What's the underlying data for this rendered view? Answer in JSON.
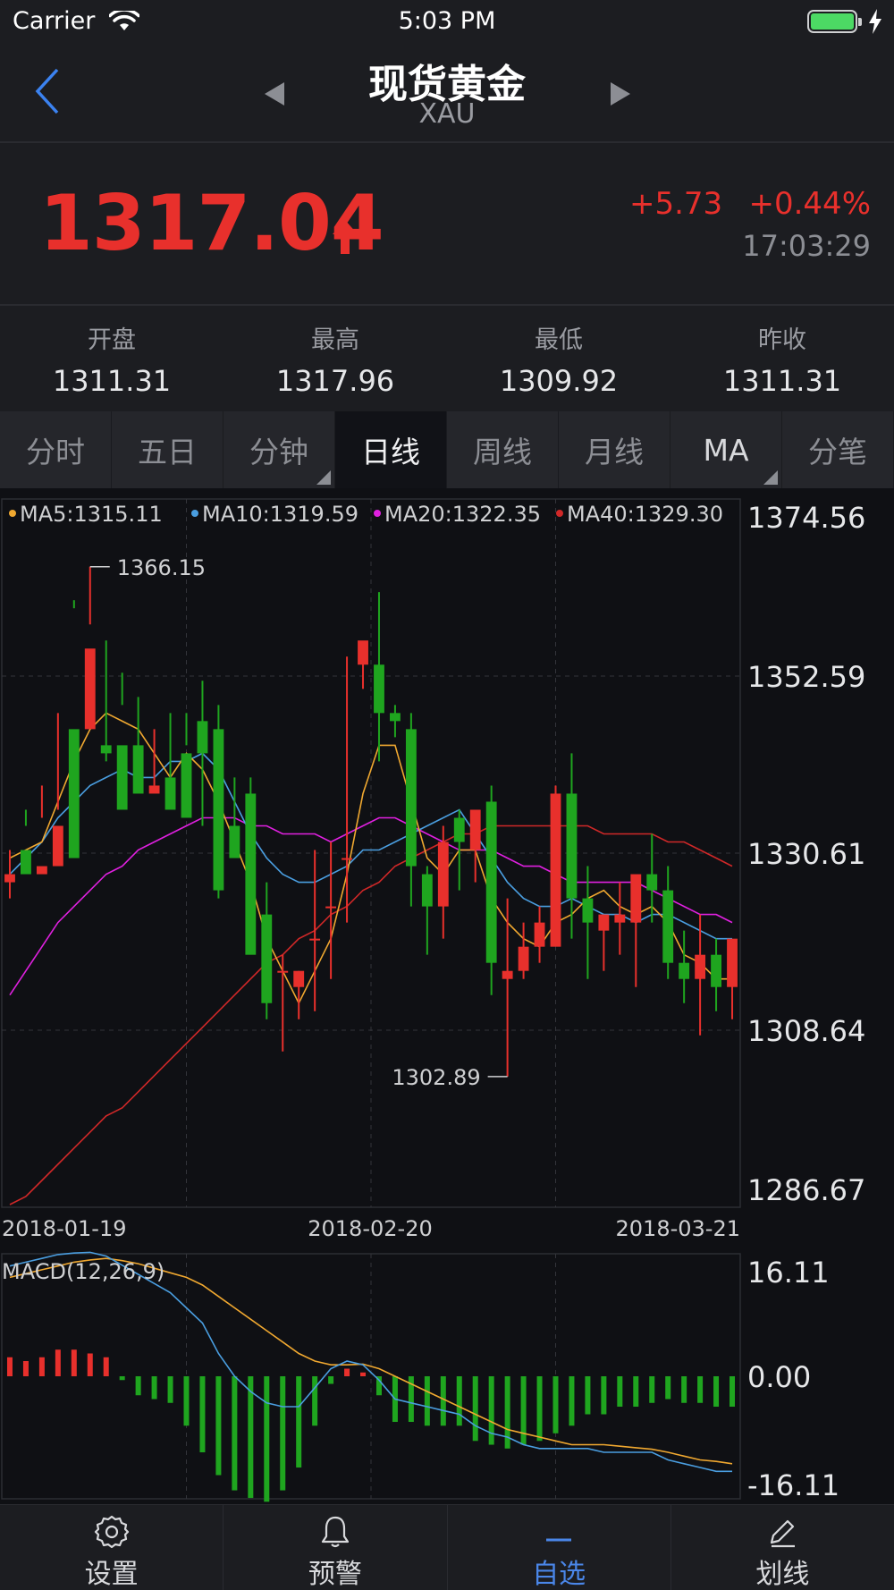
{
  "status_bar": {
    "carrier": "Carrier",
    "time": "5:03 PM"
  },
  "nav": {
    "title": "现货黄金",
    "subtitle": "XAU"
  },
  "quote": {
    "price": "1317.04",
    "change": "+5.73",
    "change_pct": "+0.44%",
    "time": "17:03:29"
  },
  "stats": [
    {
      "label": "开盘",
      "value": "1311.31"
    },
    {
      "label": "最高",
      "value": "1317.96"
    },
    {
      "label": "最低",
      "value": "1309.92"
    },
    {
      "label": "昨收",
      "value": "1311.31"
    }
  ],
  "tabs": [
    {
      "label": "分时",
      "active": false,
      "corner": false
    },
    {
      "label": "五日",
      "active": false,
      "corner": false
    },
    {
      "label": "分钟",
      "active": false,
      "corner": true
    },
    {
      "label": "日线",
      "active": true,
      "corner": false
    },
    {
      "label": "周线",
      "active": false,
      "corner": false
    },
    {
      "label": "月线",
      "active": false,
      "corner": false
    },
    {
      "label": "MA",
      "active": false,
      "corner": true
    },
    {
      "label": "分笔",
      "active": false,
      "corner": false
    }
  ],
  "bottom_tabs": [
    {
      "label": "设置",
      "icon": "gear-icon",
      "active": false
    },
    {
      "label": "预警",
      "icon": "bell-icon",
      "active": false
    },
    {
      "label": "自选",
      "icon": "minus-icon",
      "active": true
    },
    {
      "label": "划线",
      "icon": "pencil-icon",
      "active": false
    }
  ],
  "colors": {
    "up": "#e8302c",
    "down": "#1fa51f",
    "ma5": "#f0a830",
    "ma10": "#4a9ee0",
    "ma20": "#e020e0",
    "ma40": "#d02828",
    "dif": "#4a9ee0",
    "dea": "#f0a830",
    "accent": "#4a86e8"
  },
  "chart_data": [
    {
      "type": "candlestick",
      "legend": [
        {
          "label": "MA5:1315.11",
          "color": "#f0a830"
        },
        {
          "label": "MA10:1319.59",
          "color": "#4a9ee0"
        },
        {
          "label": "MA20:1322.35",
          "color": "#e020e0"
        },
        {
          "label": "MA40:1329.30",
          "color": "#d02828"
        }
      ],
      "ylim": [
        1286.67,
        1374.56
      ],
      "y_ticks": [
        "1374.56",
        "1352.59",
        "1330.61",
        "1308.64",
        "1286.67"
      ],
      "x_ticks": [
        "2018-01-19",
        "2018-02-20",
        "2018-03-21"
      ],
      "max_label": "1366.15",
      "min_label": "1302.89",
      "candles": [
        [
          1327,
          1331,
          1328,
          1325
        ],
        [
          1331,
          1334,
          1328,
          1336
        ],
        [
          1328,
          1339,
          1329,
          1335
        ],
        [
          1329,
          1348,
          1334,
          1336
        ],
        [
          1346,
          1361,
          1330,
          1362
        ],
        [
          1346,
          1366.15,
          1356,
          1359
        ],
        [
          1344,
          1357,
          1343,
          1342
        ],
        [
          1344,
          1353,
          1336,
          1349
        ],
        [
          1344,
          1350,
          1338,
          1342
        ],
        [
          1338,
          1346,
          1339,
          1339
        ],
        [
          1340,
          1348,
          1336,
          1337
        ],
        [
          1343,
          1348,
          1335,
          1344
        ],
        [
          1347,
          1352,
          1343,
          1334
        ],
        [
          1346,
          1349,
          1326,
          1325
        ],
        [
          1334,
          1340,
          1330,
          1330
        ],
        [
          1338,
          1340,
          1318,
          1322
        ],
        [
          1323,
          1327,
          1312,
          1310
        ],
        [
          1316,
          1318,
          1316,
          1306
        ],
        [
          1314,
          1316,
          1316,
          1310
        ],
        [
          1320,
          1331,
          1320,
          1311
        ],
        [
          1324,
          1332,
          1324,
          1315
        ],
        [
          1330,
          1355,
          1330,
          1322
        ],
        [
          1354,
          1355,
          1357,
          1351
        ],
        [
          1354,
          1363,
          1348,
          1342
        ],
        [
          1348,
          1349,
          1347,
          1345
        ],
        [
          1346,
          1348,
          1329,
          1324
        ],
        [
          1328,
          1329,
          1324,
          1318
        ],
        [
          1324,
          1334,
          1332,
          1320
        ],
        [
          1335,
          1336,
          1332,
          1326
        ],
        [
          1331,
          1334,
          1336,
          1327
        ],
        [
          1337,
          1339,
          1317,
          1313
        ],
        [
          1315,
          1325,
          1316,
          1302.89
        ],
        [
          1316,
          1322,
          1319,
          1315
        ],
        [
          1319,
          1324,
          1322,
          1317
        ],
        [
          1319,
          1339,
          1338,
          1322
        ],
        [
          1338,
          1343,
          1325,
          1320
        ],
        [
          1325,
          1329,
          1322,
          1315
        ],
        [
          1321,
          1323,
          1323,
          1316
        ],
        [
          1322,
          1327,
          1323,
          1318
        ],
        [
          1322,
          1327,
          1328,
          1314
        ],
        [
          1328,
          1333,
          1326,
          1322
        ],
        [
          1326,
          1329,
          1317,
          1315
        ],
        [
          1317,
          1321,
          1315,
          1312
        ],
        [
          1315,
          1323,
          1318,
          1308
        ],
        [
          1318,
          1320,
          1314,
          1311
        ],
        [
          1314,
          1319,
          1320,
          1310
        ]
      ],
      "ma5": [
        1330,
        1331,
        1332,
        1337,
        1342,
        1346,
        1348,
        1347,
        1346,
        1343,
        1340,
        1343,
        1341,
        1337,
        1332,
        1327,
        1320,
        1316,
        1312,
        1316,
        1320,
        1328,
        1338,
        1344,
        1344,
        1337,
        1330,
        1328,
        1331,
        1331,
        1325,
        1322,
        1320,
        1319,
        1322,
        1323,
        1325,
        1326,
        1324,
        1323,
        1324,
        1322,
        1318,
        1317,
        1315,
        1315
      ],
      "ma10": [
        1328,
        1330,
        1332,
        1335,
        1337,
        1339,
        1340,
        1341,
        1340,
        1340,
        1342,
        1342,
        1343,
        1341,
        1337,
        1333,
        1330,
        1328,
        1327,
        1327,
        1328,
        1329,
        1331,
        1331,
        1332,
        1333,
        1334,
        1335,
        1336,
        1333,
        1330,
        1327,
        1325,
        1324,
        1324,
        1325,
        1324,
        1323,
        1323,
        1322,
        1323,
        1323,
        1322,
        1321,
        1320,
        1320
      ],
      "ma20": [
        1313,
        1316,
        1319,
        1322,
        1324,
        1326,
        1328,
        1329,
        1331,
        1332,
        1333,
        1334,
        1335,
        1335,
        1335,
        1334,
        1334,
        1333,
        1333,
        1333,
        1332,
        1333,
        1334,
        1335,
        1335,
        1334,
        1333,
        1332,
        1331,
        1331,
        1331,
        1330,
        1329,
        1329,
        1328,
        1327,
        1327,
        1327,
        1327,
        1327,
        1326,
        1325,
        1324,
        1323,
        1323,
        1322
      ],
      "ma40": [
        1287,
        1288,
        1290,
        1292,
        1294,
        1296,
        1298,
        1299,
        1301,
        1303,
        1305,
        1307,
        1309,
        1311,
        1313,
        1315,
        1317,
        1318,
        1320,
        1321,
        1323,
        1324,
        1326,
        1327,
        1329,
        1330,
        1331,
        1332,
        1333,
        1333,
        1334,
        1334,
        1334,
        1334,
        1334,
        1334,
        1334,
        1333,
        1333,
        1333,
        1333,
        1332,
        1332,
        1331,
        1330,
        1329
      ]
    },
    {
      "type": "macd",
      "title": "MACD(12,26,9)",
      "ylim": [
        -16.11,
        16.11
      ],
      "y_ticks": [
        "16.11",
        "0.00",
        "-16.11"
      ],
      "dif": [
        14.5,
        15.0,
        15.5,
        16.0,
        16.2,
        16.3,
        15.8,
        14.6,
        13.4,
        12.2,
        11.0,
        9.0,
        7.0,
        3.0,
        0.0,
        -2.0,
        -3.5,
        -4.0,
        -4.0,
        -1.5,
        1.0,
        2.0,
        1.5,
        -0.5,
        -3.0,
        -3.5,
        -4.0,
        -4.5,
        -5.0,
        -6.5,
        -7.5,
        -8.0,
        -9.0,
        -9.5,
        -9.5,
        -9.5,
        -9.5,
        -10.0,
        -10.0,
        -10.0,
        -10.0,
        -11.0,
        -11.5,
        -12.0,
        -12.5,
        -12.5
      ],
      "dea": [
        13.0,
        13.5,
        14.0,
        14.5,
        15.0,
        15.3,
        15.5,
        15.2,
        14.8,
        14.2,
        13.6,
        13.0,
        12.0,
        10.5,
        9.0,
        7.5,
        6.0,
        4.5,
        3.0,
        2.0,
        1.5,
        1.5,
        1.6,
        1.0,
        0.0,
        -1.0,
        -2.0,
        -3.0,
        -4.0,
        -5.0,
        -6.0,
        -7.0,
        -7.5,
        -8.0,
        -8.5,
        -9.0,
        -9.0,
        -9.0,
        -9.2,
        -9.4,
        -9.6,
        -10.0,
        -10.5,
        -11.0,
        -11.2,
        -11.5
      ],
      "hist": [
        2.5,
        2.0,
        2.5,
        3.5,
        3.5,
        3.0,
        2.5,
        -0.5,
        -2.5,
        -3.0,
        -3.5,
        -6.5,
        -10.0,
        -13.0,
        -15.0,
        -16.0,
        -16.5,
        -15.0,
        -12.0,
        -6.5,
        -1.0,
        1.0,
        0.5,
        -2.5,
        -6.0,
        -6.0,
        -6.5,
        -6.5,
        -6.5,
        -8.5,
        -9.0,
        -9.5,
        -9.0,
        -8.5,
        -7.5,
        -6.5,
        -5.0,
        -5.0,
        -4.0,
        -4.0,
        -3.5,
        -3.0,
        -3.5,
        -3.5,
        -4.0,
        -4.0
      ]
    }
  ]
}
